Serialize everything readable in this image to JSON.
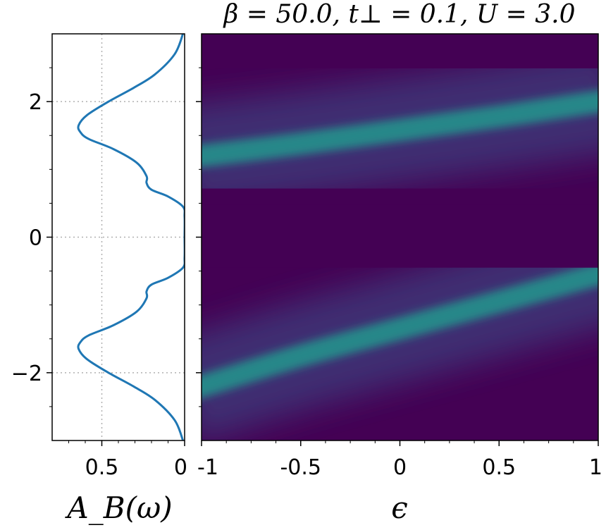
{
  "chart_data": [
    {
      "type": "line",
      "panel": "left",
      "xlabel": "A_B(ω)",
      "x_inverted": true,
      "xlim": [
        0.8,
        0.0
      ],
      "ylim": [
        -3,
        3
      ],
      "xticks": [
        0.5,
        0
      ],
      "xtick_labels": [
        "0.5",
        "0"
      ],
      "yticks": [
        2,
        0,
        -2
      ],
      "ytick_labels": [
        "2",
        "0",
        "−2"
      ],
      "grid": true,
      "series": [
        {
          "color": "#1f77b4",
          "omega": [
            3.0,
            2.7,
            2.4,
            2.2,
            2.0,
            1.8,
            1.65,
            1.55,
            1.45,
            1.3,
            1.1,
            0.9,
            0.8,
            0.7,
            0.6,
            0.45,
            0.3,
            0.0,
            -0.3,
            -0.45,
            -0.6,
            -0.7,
            -0.8,
            -0.9,
            -1.1,
            -1.3,
            -1.45,
            -1.55,
            -1.65,
            -1.8,
            -2.0,
            -2.2,
            -2.4,
            -2.7,
            -3.0
          ],
          "A": [
            0.01,
            0.06,
            0.18,
            0.31,
            0.46,
            0.59,
            0.64,
            0.63,
            0.58,
            0.43,
            0.29,
            0.23,
            0.23,
            0.2,
            0.1,
            0.01,
            0.0,
            0.0,
            0.0,
            0.01,
            0.1,
            0.2,
            0.23,
            0.23,
            0.29,
            0.43,
            0.58,
            0.63,
            0.64,
            0.59,
            0.46,
            0.31,
            0.18,
            0.06,
            0.01
          ]
        }
      ]
    },
    {
      "type": "heatmap",
      "panel": "right",
      "title": "β = 50.0, t⊥ = 0.1, U = 3.0",
      "xlabel": "ϵ",
      "xlim": [
        -1,
        1
      ],
      "ylim": [
        -3,
        3
      ],
      "xticks": [
        -1,
        -0.5,
        0,
        0.5,
        1
      ],
      "xtick_labels": [
        "-1",
        "-0.5",
        "0",
        "0.5",
        "1"
      ],
      "colormap": "viridis",
      "color_low": "#440154",
      "color_mid": "#3b528b",
      "color_high": "#21918c",
      "upper_band": {
        "eps": [
          -1,
          -0.5,
          0,
          0.5,
          1
        ],
        "omega": [
          1.2,
          1.38,
          1.58,
          1.78,
          2.0
        ]
      },
      "lower_band": {
        "eps": [
          -1,
          -0.5,
          0,
          0.5,
          1
        ],
        "omega": [
          -2.2,
          -1.75,
          -1.35,
          -0.95,
          -0.55
        ]
      },
      "gap_edges": [
        0.48,
        -0.45
      ]
    }
  ]
}
